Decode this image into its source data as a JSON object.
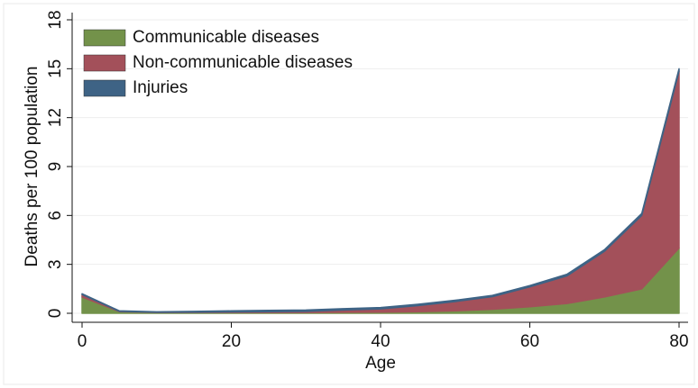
{
  "chart_data": {
    "type": "stacked_area",
    "x_label": "Age",
    "y_label": "Deaths per 100 population",
    "x": [
      0,
      5,
      10,
      15,
      20,
      25,
      30,
      35,
      40,
      45,
      50,
      55,
      60,
      65,
      70,
      75,
      80
    ],
    "series": [
      {
        "name": "Communicable diseases",
        "color": "#73924a",
        "values": [
          1.0,
          0.1,
          0.05,
          0.05,
          0.05,
          0.05,
          0.05,
          0.06,
          0.07,
          0.1,
          0.15,
          0.25,
          0.4,
          0.6,
          1.0,
          1.5,
          4.0
        ]
      },
      {
        "name": "Non-communicable diseases",
        "color": "#a3505a",
        "values": [
          0.15,
          0.02,
          0.01,
          0.02,
          0.03,
          0.05,
          0.07,
          0.14,
          0.2,
          0.37,
          0.57,
          0.77,
          1.22,
          1.7,
          2.8,
          4.5,
          10.85
        ]
      },
      {
        "name": "Injuries",
        "color": "#3e6385",
        "values": [
          0.05,
          0.03,
          0.03,
          0.05,
          0.07,
          0.08,
          0.08,
          0.08,
          0.08,
          0.08,
          0.08,
          0.08,
          0.08,
          0.1,
          0.1,
          0.12,
          0.15
        ]
      }
    ],
    "xlim": [
      0,
      80
    ],
    "xticks": [
      0,
      20,
      40,
      60,
      80
    ],
    "ylim": [
      0,
      18
    ],
    "yticks": [
      0,
      3,
      6,
      9,
      12,
      15,
      18
    ],
    "grid": true,
    "legend": "top-left"
  }
}
